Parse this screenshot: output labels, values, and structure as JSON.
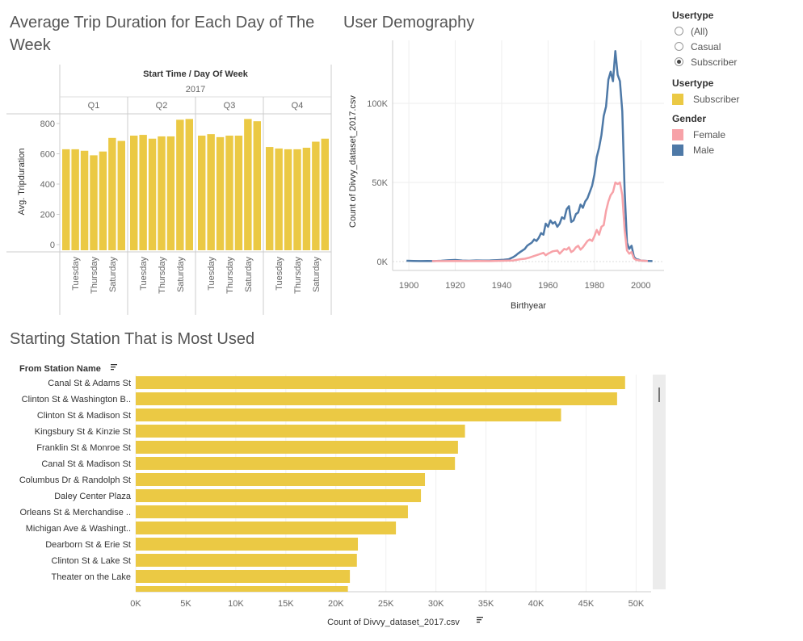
{
  "titles": {
    "trip": "Average Trip Duration for Each Day of The Week",
    "demo": "User Demography",
    "stations": "Starting Station That is Most Used"
  },
  "legend": {
    "usertype_filter_title": "Usertype",
    "usertype_options": [
      "(All)",
      "Casual",
      "Subscriber"
    ],
    "usertype_selected": "Subscriber",
    "usertype_color_title": "Usertype",
    "usertype_color_items": [
      {
        "label": "Subscriber",
        "color": "#EBC944"
      }
    ],
    "gender_title": "Gender",
    "gender_items": [
      {
        "label": "Female",
        "color": "#F7A2A8"
      },
      {
        "label": "Male",
        "color": "#4E79A7"
      }
    ]
  },
  "chart_data": [
    {
      "type": "bar",
      "title": "Average Trip Duration for Each Day of The Week",
      "header": "Start Time / Day Of Week",
      "year": "2017",
      "quarters": [
        "Q1",
        "Q2",
        "Q3",
        "Q4"
      ],
      "day_labels": [
        "Tuesday",
        "Thursday",
        "Saturday"
      ],
      "values": [
        [
          630,
          630,
          620,
          590,
          615,
          705,
          685
        ],
        [
          720,
          725,
          700,
          715,
          715,
          825,
          830
        ],
        [
          720,
          730,
          710,
          720,
          720,
          830,
          815
        ],
        [
          645,
          635,
          630,
          630,
          640,
          680,
          700
        ]
      ],
      "ylabel": "Avg. Tripduration",
      "yticks": [
        0,
        200,
        400,
        600,
        800
      ],
      "ylim": [
        0,
        850
      ],
      "color": "#EBC944"
    },
    {
      "type": "line",
      "title": "User Demography",
      "xlabel": "Birthyear",
      "ylabel": "Count of Divvy_dataset_2017.csv",
      "xticks": [
        1900,
        1920,
        1940,
        1960,
        1980,
        2000
      ],
      "yticks": [
        "0K",
        "50K",
        "100K"
      ],
      "xlim": [
        1893,
        2010
      ],
      "ylim": [
        0,
        140000
      ],
      "series": [
        {
          "name": "Male",
          "color": "#4E79A7",
          "points": [
            [
              1899,
              500
            ],
            [
              1902,
              400
            ],
            [
              1905,
              300
            ],
            [
              1908,
              400
            ],
            [
              1911,
              300
            ],
            [
              1914,
              500
            ],
            [
              1917,
              800
            ],
            [
              1920,
              1000
            ],
            [
              1923,
              600
            ],
            [
              1926,
              500
            ],
            [
              1929,
              700
            ],
            [
              1932,
              600
            ],
            [
              1935,
              700
            ],
            [
              1938,
              900
            ],
            [
              1941,
              1100
            ],
            [
              1943,
              1500
            ],
            [
              1945,
              2800
            ],
            [
              1946,
              3800
            ],
            [
              1947,
              5000
            ],
            [
              1948,
              6000
            ],
            [
              1950,
              8000
            ],
            [
              1951,
              10000
            ],
            [
              1952,
              11000
            ],
            [
              1953,
              12000
            ],
            [
              1954,
              14000
            ],
            [
              1955,
              13000
            ],
            [
              1956,
              15000
            ],
            [
              1957,
              18000
            ],
            [
              1958,
              17000
            ],
            [
              1959,
              24000
            ],
            [
              1960,
              22000
            ],
            [
              1961,
              26000
            ],
            [
              1962,
              24000
            ],
            [
              1963,
              25000
            ],
            [
              1964,
              22000
            ],
            [
              1965,
              24000
            ],
            [
              1966,
              28000
            ],
            [
              1967,
              27000
            ],
            [
              1968,
              33000
            ],
            [
              1969,
              35000
            ],
            [
              1970,
              25000
            ],
            [
              1971,
              26000
            ],
            [
              1972,
              30000
            ],
            [
              1973,
              31000
            ],
            [
              1974,
              36000
            ],
            [
              1975,
              34000
            ],
            [
              1976,
              38000
            ],
            [
              1977,
              40000
            ],
            [
              1978,
              44000
            ],
            [
              1979,
              48000
            ],
            [
              1980,
              55000
            ],
            [
              1981,
              66000
            ],
            [
              1982,
              72000
            ],
            [
              1983,
              80000
            ],
            [
              1984,
              92000
            ],
            [
              1985,
              98000
            ],
            [
              1986,
              115000
            ],
            [
              1987,
              120000
            ],
            [
              1988,
              114000
            ],
            [
              1989,
              133000
            ],
            [
              1990,
              118000
            ],
            [
              1991,
              114000
            ],
            [
              1992,
              95000
            ],
            [
              1993,
              45000
            ],
            [
              1994,
              12000
            ],
            [
              1995,
              8000
            ],
            [
              1996,
              10000
            ],
            [
              1997,
              3000
            ],
            [
              1998,
              1500
            ],
            [
              1999,
              1200
            ],
            [
              2000,
              600
            ],
            [
              2003,
              400
            ],
            [
              2005,
              300
            ]
          ]
        },
        {
          "name": "Female",
          "color": "#F7A2A8",
          "points": [
            [
              1910,
              300
            ],
            [
              1915,
              300
            ],
            [
              1920,
              400
            ],
            [
              1925,
              300
            ],
            [
              1930,
              400
            ],
            [
              1935,
              300
            ],
            [
              1940,
              500
            ],
            [
              1945,
              700
            ],
            [
              1948,
              1500
            ],
            [
              1950,
              1800
            ],
            [
              1952,
              2500
            ],
            [
              1954,
              3500
            ],
            [
              1956,
              4500
            ],
            [
              1958,
              5500
            ],
            [
              1959,
              4000
            ],
            [
              1960,
              5000
            ],
            [
              1962,
              6500
            ],
            [
              1964,
              7000
            ],
            [
              1965,
              5000
            ],
            [
              1967,
              8000
            ],
            [
              1968,
              7500
            ],
            [
              1969,
              9000
            ],
            [
              1970,
              6000
            ],
            [
              1971,
              7000
            ],
            [
              1972,
              9000
            ],
            [
              1973,
              10000
            ],
            [
              1974,
              7500
            ],
            [
              1975,
              9000
            ],
            [
              1976,
              11000
            ],
            [
              1977,
              13000
            ],
            [
              1978,
              14000
            ],
            [
              1979,
              13000
            ],
            [
              1980,
              16000
            ],
            [
              1981,
              20000
            ],
            [
              1982,
              17000
            ],
            [
              1983,
              22000
            ],
            [
              1984,
              23000
            ],
            [
              1985,
              32000
            ],
            [
              1986,
              38000
            ],
            [
              1987,
              42000
            ],
            [
              1988,
              44000
            ],
            [
              1989,
              50000
            ],
            [
              1990,
              49000
            ],
            [
              1991,
              50000
            ],
            [
              1992,
              42000
            ],
            [
              1993,
              20000
            ],
            [
              1994,
              7000
            ],
            [
              1995,
              5000
            ],
            [
              1996,
              6000
            ],
            [
              1997,
              2000
            ],
            [
              1998,
              1000
            ],
            [
              2000,
              600
            ],
            [
              2003,
              300
            ]
          ]
        }
      ]
    },
    {
      "type": "bar",
      "orientation": "horizontal",
      "title": "Starting Station That is Most Used",
      "ylabel": "From Station Name",
      "xlabel": "Count of Divvy_dataset_2017.csv",
      "xticks": [
        "0K",
        "5K",
        "10K",
        "15K",
        "20K",
        "25K",
        "30K",
        "35K",
        "40K",
        "45K",
        "50K"
      ],
      "xlim": [
        0,
        51500
      ],
      "categories": [
        "Canal St & Adams St",
        "Clinton St & Washington B..",
        "Clinton St & Madison St",
        "Kingsbury St & Kinzie St",
        "Franklin St & Monroe St",
        "Canal St & Madison St",
        "Columbus Dr & Randolph St",
        "Daley Center Plaza",
        "Orleans St & Merchandise ..",
        "Michigan Ave & Washingt..",
        "Dearborn St & Erie St",
        "Clinton St & Lake St",
        "Theater on the Lake"
      ],
      "values": [
        48900,
        48100,
        42500,
        32900,
        32200,
        31900,
        28900,
        28500,
        27200,
        26000,
        22200,
        22100,
        21400
      ],
      "color": "#EBC944"
    }
  ]
}
